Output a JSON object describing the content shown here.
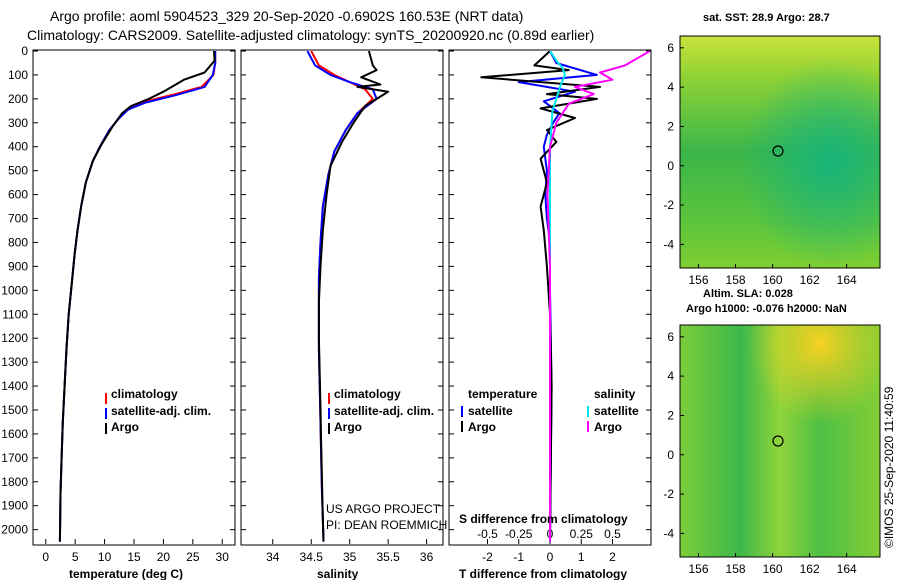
{
  "header": {
    "line1": "Argo profile: aoml 5904523_329 20-Sep-2020 -0.6902S 160.53E (NRT data)",
    "line2": "Climatology: CARS2009. Satellite-adjusted climatology: synTS_20200920.nc (0.89d earlier)"
  },
  "colors": {
    "climatology": "#ff0000",
    "satellite": "#0000ff",
    "argo": "#000000",
    "sat_salinity": "#00e5ee",
    "argo_salinity": "#ff00ff"
  },
  "depth_axis": {
    "ticks": [
      "0",
      "100",
      "200",
      "300",
      "400",
      "500",
      "600",
      "700",
      "800",
      "900",
      "1000",
      "1100",
      "1200",
      "1300",
      "1400",
      "1500",
      "1600",
      "1700",
      "1800",
      "1900",
      "2000"
    ],
    "min": 0,
    "max": 2060
  },
  "legend_labels": {
    "climatology": "climatology",
    "satellite_adj": "satellite-adj. clim.",
    "argo": "Argo",
    "temperature": "temperature",
    "salinity": "salinity",
    "satellite": "satellite"
  },
  "credit": {
    "line1": "US ARGO PROJECT",
    "line2": "PI: DEAN ROEMMICH"
  },
  "map_sst": {
    "title": "sat. SST: 28.9 Argo: 28.7",
    "y_ticks": [
      "6",
      "4",
      "2",
      "0",
      "-2",
      "-4"
    ],
    "x_ticks": [
      "156",
      "158",
      "160",
      "162",
      "164"
    ]
  },
  "map_sla": {
    "title1": "Altim. SLA: 0.028",
    "title2": "Argo h1000: -0.076 h2000: NaN",
    "y_ticks": [
      "6",
      "4",
      "2",
      "0",
      "-2",
      "-4"
    ],
    "x_ticks": [
      "156",
      "158",
      "160",
      "162",
      "164"
    ]
  },
  "watermark": "©IMOS 25-Sep-2020 11:40:59",
  "chart_data": [
    {
      "type": "line",
      "xlabel": "temperature (deg C)",
      "xlim": [
        -2,
        32
      ],
      "x_ticks": [
        "0",
        "5",
        "10",
        "15",
        "20",
        "25",
        "30"
      ],
      "ylim": [
        2060,
        0
      ],
      "series": [
        {
          "name": "climatology",
          "x": [
            28.8,
            28.8,
            28.5,
            26.5,
            22.0,
            17.0,
            14.0,
            12.5,
            10.8,
            9.2,
            8.0,
            6.8,
            6.0,
            5.4,
            4.9,
            4.3,
            3.9,
            3.5,
            3.2,
            2.9,
            2.7,
            2.5,
            2.4
          ],
          "y": [
            0,
            50,
            100,
            150,
            180,
            210,
            240,
            280,
            330,
            400,
            460,
            550,
            650,
            750,
            850,
            1000,
            1100,
            1250,
            1400,
            1550,
            1700,
            1850,
            2050
          ]
        },
        {
          "name": "satellite-adj. clim.",
          "x": [
            28.8,
            28.8,
            28.4,
            27.0,
            22.0,
            17.0,
            14.0,
            12.3,
            10.7,
            9.2,
            8.0,
            6.8,
            6.0,
            5.4,
            4.9,
            4.3,
            3.9,
            3.5,
            3.2,
            2.9,
            2.7,
            2.5,
            2.4
          ],
          "y": [
            0,
            50,
            100,
            150,
            185,
            215,
            245,
            285,
            335,
            400,
            460,
            550,
            650,
            750,
            850,
            1000,
            1100,
            1250,
            1400,
            1550,
            1700,
            1850,
            2050
          ]
        },
        {
          "name": "Argo",
          "x": [
            28.6,
            28.7,
            27.0,
            23.5,
            20.0,
            17.5,
            14.5,
            13.0,
            11.5,
            9.5,
            8.0,
            6.8,
            6.0,
            5.4,
            4.9,
            4.3,
            3.9,
            3.5,
            3.2,
            2.9,
            2.7,
            2.5,
            2.4
          ],
          "y": [
            0,
            40,
            90,
            120,
            170,
            200,
            230,
            260,
            310,
            390,
            460,
            550,
            650,
            750,
            850,
            1000,
            1100,
            1250,
            1400,
            1550,
            1700,
            1850,
            2050
          ]
        }
      ]
    },
    {
      "type": "line",
      "xlabel": "salinity",
      "xlim": [
        33.6,
        36.2
      ],
      "x_ticks": [
        "34",
        "34.5",
        "35",
        "35.5",
        "36"
      ],
      "ylim": [
        2060,
        0
      ],
      "series": [
        {
          "name": "climatology",
          "x": [
            34.5,
            34.6,
            34.8,
            35.0,
            35.2,
            35.3,
            35.1,
            34.95,
            34.8,
            34.72,
            34.65,
            34.62,
            34.6,
            34.6,
            34.6,
            34.61,
            34.62,
            34.63,
            34.64,
            34.65,
            34.66
          ],
          "y": [
            0,
            60,
            100,
            130,
            160,
            200,
            260,
            330,
            420,
            520,
            650,
            800,
            950,
            1100,
            1250,
            1400,
            1550,
            1700,
            1850,
            1950,
            2050
          ]
        },
        {
          "name": "satellite-adj. clim.",
          "x": [
            34.45,
            34.55,
            34.75,
            35.0,
            35.3,
            35.35,
            35.1,
            34.95,
            34.8,
            34.72,
            34.65,
            34.62,
            34.6,
            34.6,
            34.6,
            34.61,
            34.62,
            34.63,
            34.64,
            34.65,
            34.66
          ],
          "y": [
            0,
            60,
            100,
            130,
            160,
            200,
            260,
            330,
            420,
            520,
            650,
            800,
            950,
            1100,
            1250,
            1400,
            1550,
            1700,
            1850,
            1950,
            2050
          ]
        },
        {
          "name": "Argo",
          "x": [
            35.25,
            35.3,
            35.35,
            35.15,
            35.4,
            35.1,
            35.5,
            35.2,
            35.05,
            34.9,
            34.75,
            34.7,
            34.65,
            34.62,
            34.6,
            34.6,
            34.61,
            34.62,
            34.63,
            34.64,
            34.65,
            34.66
          ],
          "y": [
            0,
            60,
            80,
            110,
            140,
            150,
            170,
            230,
            300,
            380,
            480,
            600,
            750,
            900,
            1050,
            1200,
            1350,
            1500,
            1650,
            1800,
            1950,
            2050
          ]
        }
      ]
    },
    {
      "type": "line",
      "xlabel": "T difference from climatology",
      "x2label": "S difference from climatology",
      "xlim": [
        -3.2,
        3.2
      ],
      "x_ticks": [
        "-2",
        "-1",
        "0",
        "1",
        "2"
      ],
      "x2lim": [
        -0.8,
        0.8
      ],
      "x2_ticks": [
        "-0.5",
        "-0.25",
        "0",
        "0.25",
        "0.5"
      ],
      "ylim": [
        2060,
        0
      ],
      "series": [
        {
          "name": "temperature satellite",
          "x": [
            0,
            0.2,
            1.5,
            -1.0,
            0.8,
            -0.2,
            0.3,
            0.1,
            -0.1,
            -0.2,
            -0.1,
            -0.15,
            -0.1,
            0,
            0,
            0.05,
            0
          ],
          "y": [
            0,
            50,
            100,
            130,
            170,
            210,
            260,
            300,
            350,
            400,
            500,
            600,
            700,
            800,
            1000,
            1400,
            2050
          ]
        },
        {
          "name": "temperature Argo",
          "x": [
            0,
            -0.5,
            0.6,
            -2.2,
            1.6,
            -0.1,
            1.5,
            -0.3,
            0.8,
            -0.1,
            0.2,
            -0.3,
            -0.1,
            -0.3,
            -0.2,
            -0.1,
            0,
            0.05,
            0
          ],
          "y": [
            0,
            60,
            80,
            110,
            150,
            180,
            200,
            240,
            280,
            330,
            380,
            450,
            550,
            650,
            750,
            900,
            1100,
            1400,
            2050
          ]
        },
        {
          "name": "salinity satellite",
          "x": [
            0,
            0.05,
            0.1,
            0.12,
            0.08,
            0.02,
            0,
            0,
            0,
            0
          ],
          "y": [
            0,
            40,
            70,
            100,
            150,
            250,
            400,
            800,
            1500,
            2050
          ]
        },
        {
          "name": "salinity Argo",
          "x": [
            0.8,
            0.6,
            0.4,
            0.5,
            0.2,
            0.35,
            0.15,
            0.05,
            0,
            -0.02,
            0,
            0,
            0
          ],
          "y": [
            0,
            60,
            90,
            120,
            150,
            180,
            220,
            300,
            400,
            600,
            900,
            1500,
            2050
          ]
        }
      ]
    }
  ]
}
